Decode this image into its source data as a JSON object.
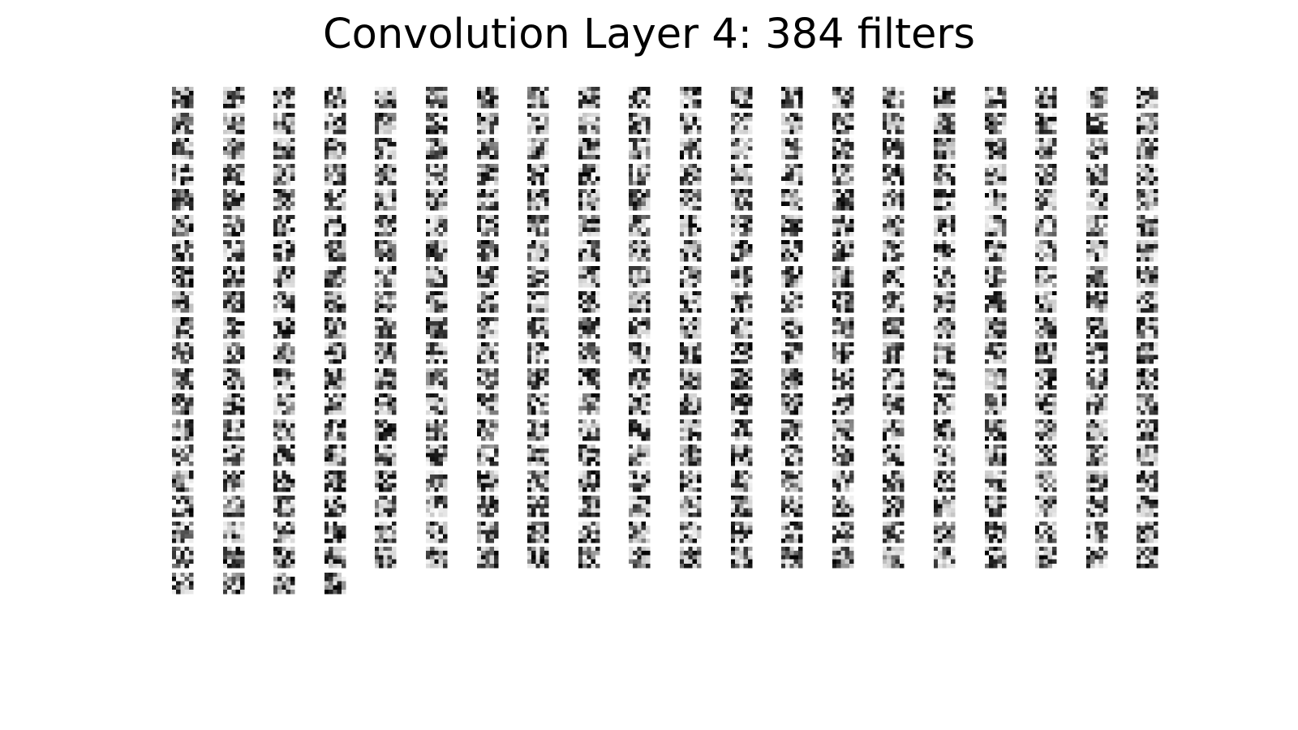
{
  "figure": {
    "title": "Convolution Layer 4: 384 filters"
  },
  "filter_grid": {
    "filter_count": 384,
    "columns": 20,
    "kernel_size": [
      5,
      5
    ],
    "colormap": "gray_r"
  }
}
